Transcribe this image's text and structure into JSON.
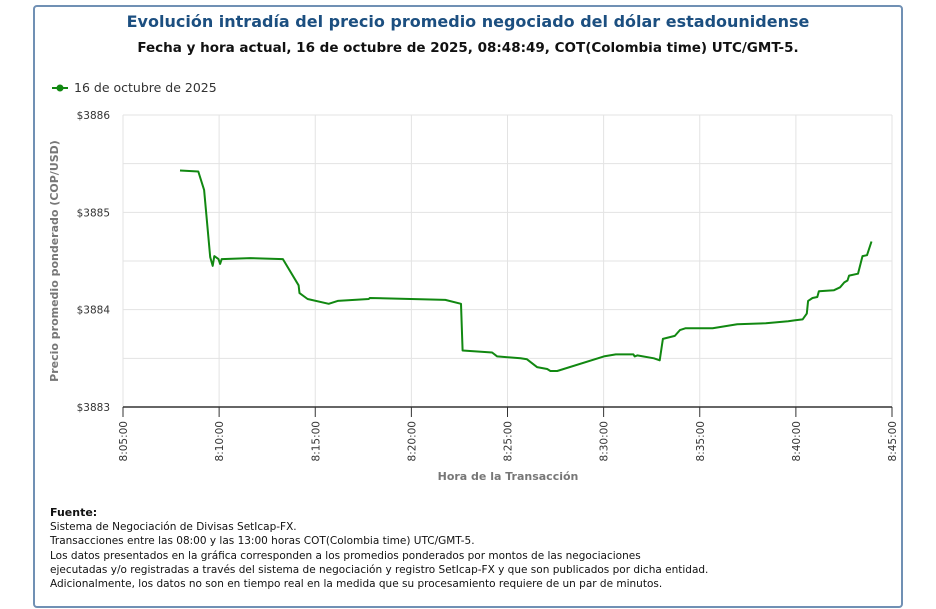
{
  "header": {
    "title": "Evolución intradía del precio promedio negociado del dólar estadounidense",
    "subtitle": "Fecha y hora actual, 16 de octubre de 2025, 08:48:49, COT(Colombia time) UTC/GMT-5."
  },
  "chart_data": {
    "type": "line",
    "title": "Evolución intradía del precio promedio negociado del dólar estadounidense",
    "xlabel": "Hora de la Transacción",
    "ylabel": "Precio promedio ponderado (COP/USD)",
    "xlim": [
      "8:05:00",
      "8:45:00"
    ],
    "ylim": [
      3883,
      3886
    ],
    "grid": true,
    "legend_position": "top-left",
    "x_ticks": [
      "8:05:00",
      "8:10:00",
      "8:15:00",
      "8:20:00",
      "8:25:00",
      "8:30:00",
      "8:35:00",
      "8:40:00",
      "8:45:00"
    ],
    "y_ticks": [
      "$3883",
      "$3884",
      "$3885",
      "$3886"
    ],
    "series": [
      {
        "name": "16 de octubre de 2025",
        "color": "#118811",
        "x": [
          "8:07:58",
          "8:08:55",
          "8:09:13",
          "8:09:32",
          "8:09:40",
          "8:09:45",
          "8:09:58",
          "8:10:03",
          "8:10:08",
          "8:11:37",
          "8:13:19",
          "8:14:08",
          "8:14:11",
          "8:14:36",
          "8:15:42",
          "8:16:10",
          "8:17:47",
          "8:17:50",
          "8:21:46",
          "8:22:35",
          "8:22:40",
          "8:24:12",
          "8:24:28",
          "8:25:41",
          "8:26:01",
          "8:26:32",
          "8:27:04",
          "8:27:14",
          "8:27:35",
          "8:30:01",
          "8:30:38",
          "8:31:33",
          "8:31:37",
          "8:31:45",
          "8:32:37",
          "8:32:55",
          "8:33:05",
          "8:33:42",
          "8:33:58",
          "8:34:16",
          "8:35:40",
          "8:36:57",
          "8:38:26",
          "8:39:36",
          "8:39:55",
          "8:40:21",
          "8:40:34",
          "8:40:38",
          "8:40:52",
          "8:41:07",
          "8:41:12",
          "8:41:59",
          "8:42:18",
          "8:42:31",
          "8:42:41",
          "8:42:46",
          "8:43:14",
          "8:43:28",
          "8:43:42",
          "8:43:56"
        ],
        "y": [
          3885.43,
          3885.42,
          3885.23,
          3884.54,
          3884.45,
          3884.55,
          3884.52,
          3884.47,
          3884.52,
          3884.53,
          3884.52,
          3884.25,
          3884.17,
          3884.11,
          3884.06,
          3884.09,
          3884.11,
          3884.12,
          3884.1,
          3884.06,
          3883.58,
          3883.56,
          3883.52,
          3883.5,
          3883.49,
          3883.41,
          3883.39,
          3883.37,
          3883.37,
          3883.52,
          3883.54,
          3883.54,
          3883.52,
          3883.53,
          3883.5,
          3883.48,
          3883.7,
          3883.73,
          3883.79,
          3883.81,
          3883.81,
          3883.85,
          3883.86,
          3883.88,
          3883.89,
          3883.9,
          3883.96,
          3884.09,
          3884.12,
          3884.13,
          3884.19,
          3884.2,
          3884.23,
          3884.28,
          3884.3,
          3884.35,
          3884.37,
          3884.55,
          3884.56,
          3884.7
        ]
      }
    ]
  },
  "source": {
    "heading": "Fuente:",
    "lines": [
      "Sistema de Negociación de Divisas SetIcap-FX.",
      "Transacciones entre las 08:00 y las 13:00 horas COT(Colombia time) UTC/GMT-5.",
      "Los datos presentados en la gráfica corresponden a los promedios ponderados por montos de las negociaciones",
      "ejecutadas y/o registradas a través del sistema de negociación y registro SetIcap-FX y que son publicados por dicha entidad.",
      "Adicionalmente, los datos no son en tiempo real en la medida que su procesamiento requiere de un par de minutos."
    ]
  }
}
